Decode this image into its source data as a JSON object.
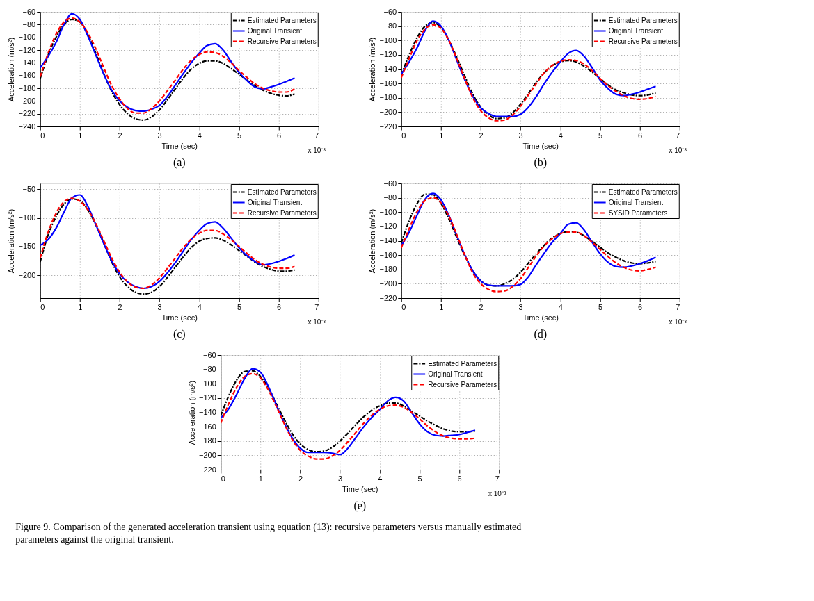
{
  "chart_data": [
    {
      "type": "line",
      "title": "(a)",
      "xlabel": "Time (sec)",
      "ylabel": "Acceleration (m/s²)",
      "annotations": [
        "x 10⁻³"
      ],
      "x": [
        0,
        0.2,
        0.4,
        0.6,
        0.8,
        1.0,
        1.2,
        1.4,
        1.6,
        1.8,
        2.0,
        2.2,
        2.4,
        2.6,
        2.8,
        3.0,
        3.2,
        3.4,
        3.6,
        3.8,
        4.0,
        4.2,
        4.4,
        4.6,
        4.8,
        5.0,
        5.2,
        5.4,
        5.6,
        5.8,
        6.0,
        6.2,
        6.4
      ],
      "xlim": [
        0,
        7
      ],
      "xticks": [
        0,
        1,
        2,
        3,
        4,
        5,
        6,
        7
      ],
      "ylim": [
        -240,
        -60
      ],
      "yticks": [
        -240,
        -220,
        -200,
        -180,
        -160,
        -140,
        -120,
        -100,
        -80,
        -60
      ],
      "grid": true,
      "legend": "top right",
      "series": [
        {
          "name": "Estimated Parameters",
          "color": "#000000",
          "line_style": "dashdot",
          "values": [
            -165,
            -128,
            -100,
            -80,
            -72,
            -76,
            -96,
            -125,
            -157,
            -185,
            -206,
            -220,
            -228,
            -230,
            -225,
            -214,
            -198,
            -181,
            -164,
            -150,
            -141,
            -137,
            -137,
            -141,
            -149,
            -158,
            -167,
            -176,
            -183,
            -188,
            -191,
            -192,
            -189
          ]
        },
        {
          "name": "Original Transient",
          "color": "#0000ff",
          "line_style": "solid",
          "values": [
            -148,
            -130,
            -108,
            -80,
            -63,
            -72,
            -98,
            -128,
            -158,
            -183,
            -200,
            -210,
            -215,
            -216,
            -213,
            -207,
            -193,
            -175,
            -157,
            -140,
            -125,
            -113,
            -110,
            -120,
            -138,
            -155,
            -168,
            -178,
            -181,
            -178,
            -174,
            -169,
            -164
          ]
        },
        {
          "name": "Recursive Parameters",
          "color": "#ff0000",
          "line_style": "dashed",
          "values": [
            -162,
            -125,
            -95,
            -76,
            -70,
            -76,
            -93,
            -118,
            -148,
            -176,
            -197,
            -212,
            -219,
            -219,
            -212,
            -200,
            -184,
            -167,
            -150,
            -136,
            -127,
            -123,
            -124,
            -130,
            -140,
            -152,
            -163,
            -173,
            -180,
            -184,
            -186,
            -186,
            -181
          ]
        }
      ]
    },
    {
      "type": "line",
      "title": "(b)",
      "xlabel": "Time (sec)",
      "ylabel": "Acceleration (m/s²)",
      "annotations": [
        "x 10⁻³"
      ],
      "x": [
        0,
        0.2,
        0.4,
        0.6,
        0.8,
        1.0,
        1.2,
        1.4,
        1.6,
        1.8,
        2.0,
        2.2,
        2.4,
        2.6,
        2.8,
        3.0,
        3.2,
        3.4,
        3.6,
        3.8,
        4.0,
        4.2,
        4.4,
        4.6,
        4.8,
        5.0,
        5.2,
        5.4,
        5.6,
        5.8,
        6.0,
        6.2,
        6.4
      ],
      "xlim": [
        0,
        7
      ],
      "xticks": [
        0,
        1,
        2,
        3,
        4,
        5,
        6,
        7
      ],
      "ylim": [
        -220,
        -60
      ],
      "yticks": [
        -220,
        -200,
        -180,
        -160,
        -140,
        -120,
        -100,
        -80,
        -60
      ],
      "grid": true,
      "legend": "top right",
      "series": [
        {
          "name": "Estimated Parameters",
          "color": "#000000",
          "line_style": "dashdot",
          "values": [
            -148,
            -120,
            -96,
            -80,
            -75,
            -82,
            -100,
            -124,
            -150,
            -175,
            -193,
            -204,
            -209,
            -208,
            -201,
            -189,
            -174,
            -158,
            -145,
            -135,
            -130,
            -128,
            -130,
            -136,
            -144,
            -153,
            -162,
            -169,
            -173,
            -176,
            -177,
            -176,
            -173
          ]
        },
        {
          "name": "Original Transient",
          "color": "#0000ff",
          "line_style": "solid",
          "values": [
            -147,
            -130,
            -110,
            -86,
            -73,
            -80,
            -100,
            -128,
            -155,
            -178,
            -194,
            -202,
            -206,
            -206,
            -206,
            -203,
            -193,
            -178,
            -160,
            -144,
            -130,
            -118,
            -114,
            -122,
            -138,
            -155,
            -167,
            -175,
            -177,
            -175,
            -172,
            -168,
            -164
          ]
        },
        {
          "name": "Recursive Parameters",
          "color": "#ff0000",
          "line_style": "dashed",
          "values": [
            -152,
            -125,
            -100,
            -84,
            -78,
            -83,
            -100,
            -126,
            -154,
            -180,
            -198,
            -208,
            -212,
            -211,
            -204,
            -192,
            -176,
            -160,
            -145,
            -135,
            -129,
            -127,
            -128,
            -133,
            -142,
            -153,
            -163,
            -171,
            -177,
            -181,
            -182,
            -181,
            -178
          ]
        }
      ]
    },
    {
      "type": "line",
      "title": "(c)",
      "xlabel": "Time (sec)",
      "ylabel": "Acceleration (m/s²)",
      "annotations": [
        "x 10⁻³"
      ],
      "x": [
        0,
        0.2,
        0.4,
        0.6,
        0.8,
        1.0,
        1.2,
        1.4,
        1.6,
        1.8,
        2.0,
        2.2,
        2.4,
        2.6,
        2.8,
        3.0,
        3.2,
        3.4,
        3.6,
        3.8,
        4.0,
        4.2,
        4.4,
        4.6,
        4.8,
        5.0,
        5.2,
        5.4,
        5.6,
        5.8,
        6.0,
        6.2,
        6.4
      ],
      "xlim": [
        0,
        7
      ],
      "xticks": [
        0,
        1,
        2,
        3,
        4,
        5,
        6,
        7
      ],
      "ylim": [
        -240,
        -40
      ],
      "yticks": [
        -200,
        -150,
        -100,
        -50
      ],
      "grid": true,
      "legend": "top right",
      "series": [
        {
          "name": "Estimated Parameters",
          "color": "#000000",
          "line_style": "dashdot",
          "values": [
            -177,
            -130,
            -98,
            -76,
            -67,
            -70,
            -86,
            -112,
            -144,
            -177,
            -203,
            -220,
            -230,
            -233,
            -230,
            -220,
            -204,
            -186,
            -168,
            -152,
            -141,
            -136,
            -135,
            -139,
            -147,
            -157,
            -167,
            -177,
            -185,
            -190,
            -193,
            -193,
            -191
          ]
        },
        {
          "name": "Original Transient",
          "color": "#0000ff",
          "line_style": "solid",
          "values": [
            -148,
            -138,
            -118,
            -90,
            -65,
            -60,
            -80,
            -112,
            -145,
            -175,
            -198,
            -212,
            -220,
            -223,
            -220,
            -211,
            -196,
            -178,
            -158,
            -138,
            -122,
            -110,
            -107,
            -118,
            -135,
            -152,
            -166,
            -176,
            -182,
            -180,
            -176,
            -171,
            -165
          ]
        },
        {
          "name": "Recursive Parameters",
          "color": "#ff0000",
          "line_style": "dashed",
          "values": [
            -170,
            -125,
            -92,
            -72,
            -66,
            -71,
            -86,
            -110,
            -140,
            -170,
            -195,
            -212,
            -221,
            -223,
            -217,
            -205,
            -188,
            -170,
            -152,
            -137,
            -127,
            -122,
            -122,
            -128,
            -138,
            -150,
            -162,
            -173,
            -181,
            -186,
            -188,
            -188,
            -185
          ]
        }
      ]
    },
    {
      "type": "line",
      "title": "(d)",
      "xlabel": "Time (sec)",
      "ylabel": "Acceleration (m/s²)",
      "annotations": [
        "x 10⁻³"
      ],
      "x": [
        0,
        0.2,
        0.4,
        0.6,
        0.8,
        1.0,
        1.2,
        1.4,
        1.6,
        1.8,
        2.0,
        2.2,
        2.4,
        2.6,
        2.8,
        3.0,
        3.2,
        3.4,
        3.6,
        3.8,
        4.0,
        4.2,
        4.4,
        4.6,
        4.8,
        5.0,
        5.2,
        5.4,
        5.6,
        5.8,
        6.0,
        6.2,
        6.4
      ],
      "xlim": [
        0,
        7
      ],
      "xticks": [
        0,
        1,
        2,
        3,
        4,
        5,
        6,
        7
      ],
      "ylim": [
        -220,
        -60
      ],
      "yticks": [
        -220,
        -200,
        -180,
        -160,
        -140,
        -120,
        -100,
        -80,
        -60
      ],
      "grid": true,
      "legend": "top right",
      "series": [
        {
          "name": "Estimated Parameters",
          "color": "#000000",
          "line_style": "dashdot",
          "values": [
            -143,
            -112,
            -88,
            -75,
            -76,
            -88,
            -110,
            -136,
            -161,
            -182,
            -196,
            -202,
            -203,
            -200,
            -194,
            -184,
            -171,
            -158,
            -146,
            -136,
            -130,
            -127,
            -128,
            -133,
            -141,
            -149,
            -157,
            -163,
            -168,
            -171,
            -172,
            -171,
            -169
          ]
        },
        {
          "name": "Original Transient",
          "color": "#0000ff",
          "line_style": "solid",
          "values": [
            -147,
            -128,
            -104,
            -82,
            -74,
            -83,
            -105,
            -133,
            -160,
            -182,
            -196,
            -202,
            -203,
            -203,
            -203,
            -201,
            -190,
            -173,
            -157,
            -142,
            -130,
            -117,
            -115,
            -125,
            -142,
            -158,
            -170,
            -176,
            -177,
            -175,
            -172,
            -168,
            -163
          ]
        },
        {
          "name": "SYSID Parameters",
          "color": "#ff0000",
          "line_style": "dashed",
          "values": [
            -150,
            -123,
            -99,
            -84,
            -80,
            -87,
            -106,
            -132,
            -160,
            -185,
            -200,
            -208,
            -211,
            -210,
            -204,
            -193,
            -177,
            -161,
            -147,
            -137,
            -130,
            -128,
            -128,
            -133,
            -142,
            -152,
            -162,
            -171,
            -177,
            -181,
            -182,
            -180,
            -177
          ]
        }
      ]
    },
    {
      "type": "line",
      "title": "(e)",
      "xlabel": "Time (sec)",
      "ylabel": "Acceleration (m/s²)",
      "annotations": [
        "x 10⁻³",
        "Figure 9. Comparison of the generated acceleration transient using equation (13): recursive parameters versus manually estimated parameters against the original transient."
      ],
      "x": [
        0,
        0.2,
        0.4,
        0.6,
        0.8,
        1.0,
        1.2,
        1.4,
        1.6,
        1.8,
        2.0,
        2.2,
        2.4,
        2.6,
        2.8,
        3.0,
        3.2,
        3.4,
        3.6,
        3.8,
        4.0,
        4.2,
        4.4,
        4.6,
        4.8,
        5.0,
        5.2,
        5.4,
        5.6,
        5.8,
        6.0,
        6.2,
        6.4
      ],
      "xlim": [
        0,
        7
      ],
      "xticks": [
        0,
        1,
        2,
        3,
        4,
        5,
        6,
        7
      ],
      "ylim": [
        -220,
        -60
      ],
      "yticks": [
        -220,
        -200,
        -180,
        -160,
        -140,
        -120,
        -100,
        -80,
        -60
      ],
      "grid": true,
      "legend": "top right",
      "series": [
        {
          "name": "Estimated Parameters",
          "color": "#000000",
          "line_style": "dashdot",
          "values": [
            -145,
            -117,
            -95,
            -83,
            -82,
            -90,
            -106,
            -128,
            -150,
            -170,
            -184,
            -192,
            -195,
            -194,
            -189,
            -180,
            -169,
            -157,
            -146,
            -137,
            -131,
            -127,
            -127,
            -131,
            -138,
            -145,
            -152,
            -158,
            -163,
            -166,
            -167,
            -167,
            -166
          ]
        },
        {
          "name": "Original Transient",
          "color": "#0000ff",
          "line_style": "solid",
          "values": [
            -148,
            -135,
            -115,
            -93,
            -79,
            -84,
            -104,
            -130,
            -155,
            -176,
            -190,
            -196,
            -196,
            -196,
            -197,
            -199,
            -190,
            -175,
            -160,
            -147,
            -136,
            -124,
            -119,
            -124,
            -140,
            -156,
            -167,
            -172,
            -173,
            -172,
            -171,
            -168,
            -165
          ]
        },
        {
          "name": "Recursive Parameters",
          "color": "#ff0000",
          "line_style": "dashed",
          "values": [
            -155,
            -128,
            -105,
            -90,
            -86,
            -92,
            -109,
            -132,
            -156,
            -178,
            -193,
            -201,
            -205,
            -205,
            -201,
            -193,
            -181,
            -168,
            -155,
            -144,
            -136,
            -131,
            -130,
            -133,
            -140,
            -149,
            -159,
            -167,
            -173,
            -176,
            -177,
            -177,
            -176
          ]
        }
      ]
    }
  ]
}
